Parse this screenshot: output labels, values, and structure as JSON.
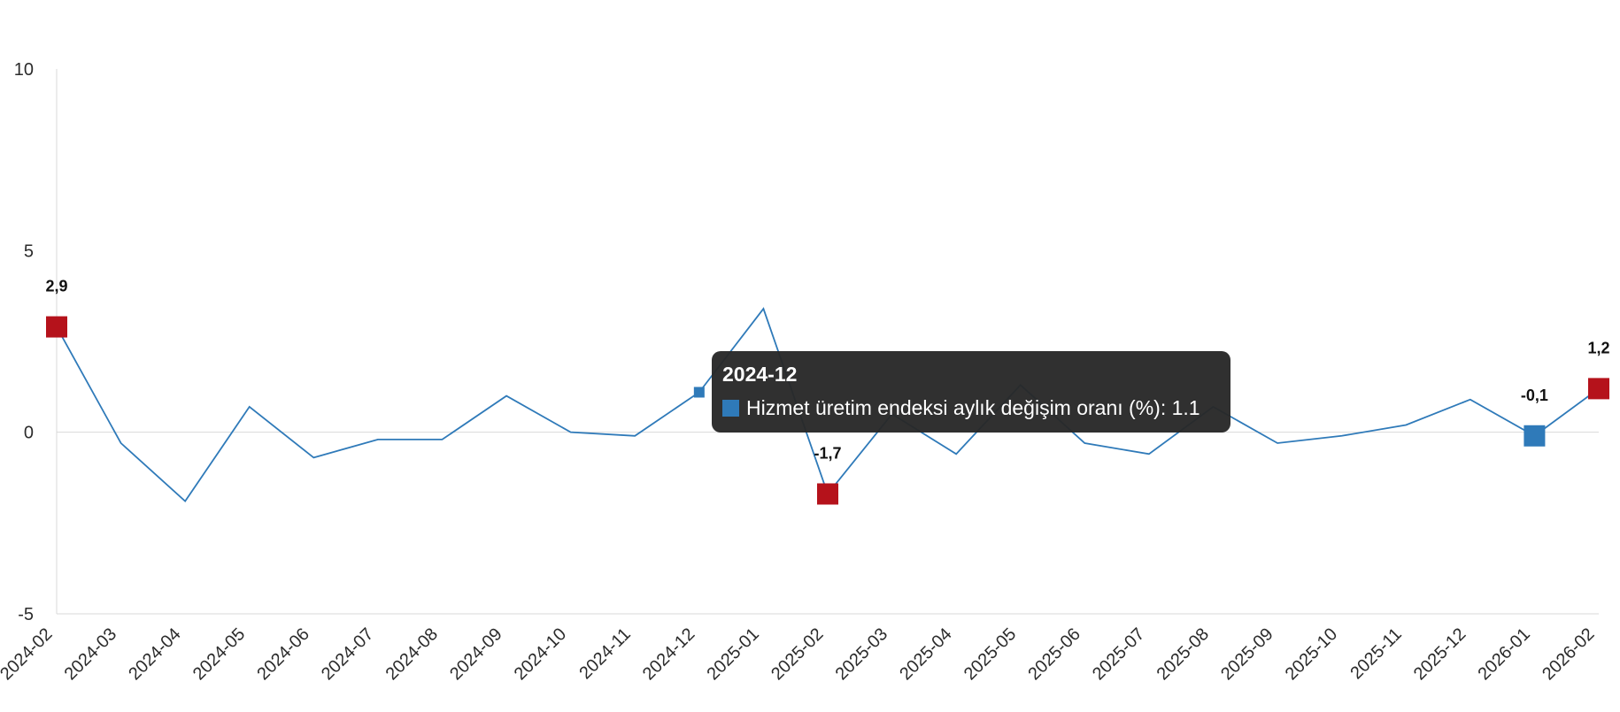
{
  "chart_data": {
    "type": "line",
    "x": [
      "2024-02",
      "2024-03",
      "2024-04",
      "2024-05",
      "2024-06",
      "2024-07",
      "2024-08",
      "2024-09",
      "2024-10",
      "2024-11",
      "2024-12",
      "2025-01",
      "2025-02",
      "2025-03",
      "2025-04",
      "2025-05",
      "2025-06",
      "2025-07",
      "2025-08",
      "2025-09",
      "2025-10",
      "2025-11",
      "2025-12",
      "2026-01",
      "2026-02"
    ],
    "series": [
      {
        "name": "Hizmet üretim endeksi aylık değişim oranı (%)",
        "values": [
          2.9,
          -0.3,
          -1.9,
          0.7,
          -0.7,
          -0.2,
          -0.2,
          1.0,
          0.0,
          -0.1,
          1.1,
          3.4,
          -1.7,
          0.5,
          -0.6,
          1.3,
          -0.3,
          -0.6,
          0.7,
          -0.3,
          -0.1,
          0.2,
          0.9,
          -0.1,
          1.2
        ],
        "color": "#2f7ab9"
      }
    ],
    "y_ticks": [
      10,
      5,
      0,
      -5
    ],
    "ylim": [
      -5,
      10
    ],
    "grid": false,
    "highlighted_points": [
      {
        "x": "2024-02",
        "label": "2,9",
        "color": "#b5121b"
      },
      {
        "x": "2025-02",
        "label": "-1,7",
        "color": "#b5121b"
      },
      {
        "x": "2026-01",
        "label": "-0,1",
        "color": "#2f7ab9"
      },
      {
        "x": "2026-02",
        "label": "1,2",
        "color": "#b5121b"
      }
    ],
    "hover_point": {
      "x": "2024-12",
      "color": "#2f7ab9"
    }
  },
  "tooltip": {
    "title": "2024-12",
    "series_label": "Hizmet üretim endeksi aylık değişim oranı (%)",
    "value_text": "1.1",
    "swatch_color": "#2f7ab9"
  }
}
